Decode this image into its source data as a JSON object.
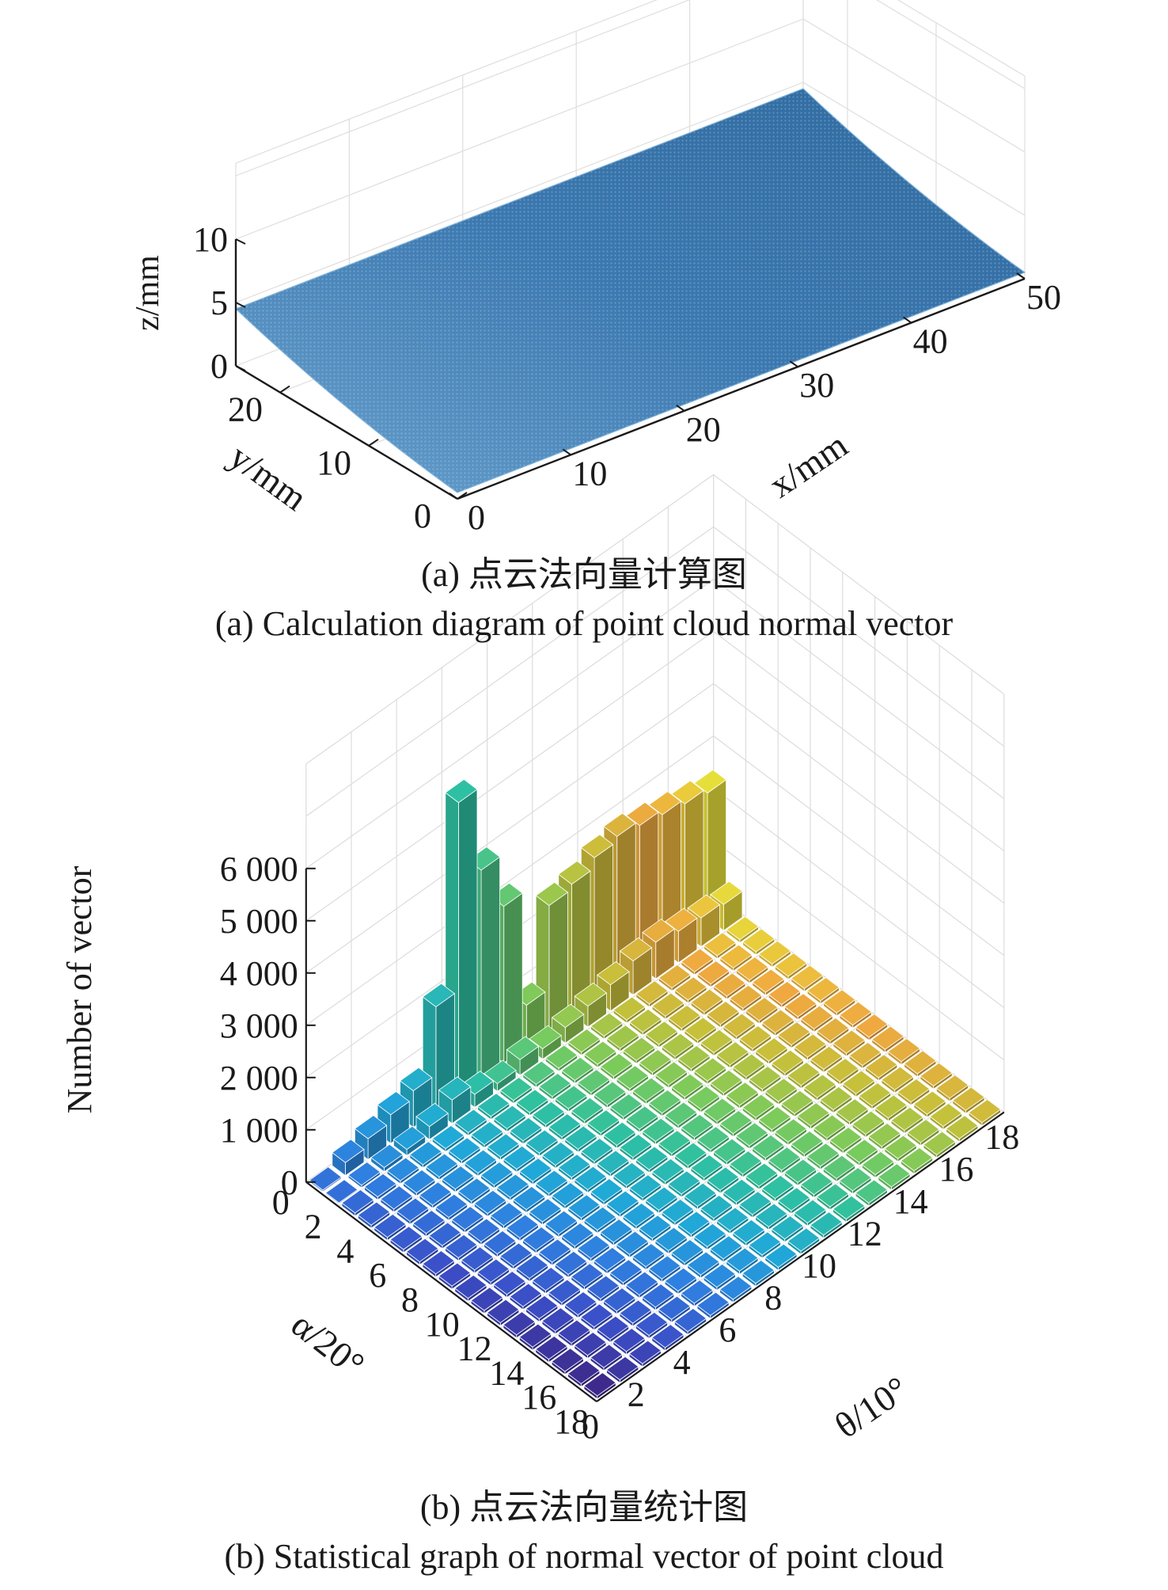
{
  "chart_data": [
    {
      "type": "scatter",
      "subtype": "3d-point-cloud",
      "title": "",
      "xlabel": "x/mm",
      "ylabel": "y/mm",
      "zlabel": "z/mm",
      "xlim": [
        0,
        50
      ],
      "ylim": [
        0,
        25
      ],
      "zlim": [
        0,
        10
      ],
      "xticks": [
        "0",
        "10",
        "20",
        "30",
        "40",
        "50"
      ],
      "yticks": [
        "0",
        "10",
        "20"
      ],
      "zticks": [
        "0",
        "5",
        "10"
      ],
      "surface": {
        "x_range": [
          0,
          50
        ],
        "y_range": [
          0,
          25
        ],
        "z_at_y0": 0.5,
        "z_at_y_mid": 2.0,
        "z_at_y25": 4.5
      },
      "point_color": "#3b78b0",
      "grid": true,
      "caption_cn": "(a) 点云法向量计算图",
      "caption_en": "(a) Calculation diagram of point cloud normal vector"
    },
    {
      "type": "bar3d",
      "title": "",
      "xlabel": "θ/10°",
      "ylabel": "α/20°",
      "zlabel": "Number of vector",
      "zlim": [
        0,
        6000
      ],
      "zticks": [
        "0",
        "1 000",
        "2 000",
        "3 000",
        "4 000",
        "5 000",
        "6 000"
      ],
      "xticks": [
        "0",
        "2",
        "4",
        "6",
        "8",
        "10",
        "12",
        "14",
        "16",
        "18"
      ],
      "yticks": [
        "0",
        "2",
        "4",
        "6",
        "8",
        "10",
        "12",
        "14",
        "16",
        "18"
      ],
      "grid_size": 18,
      "base_value": 60,
      "edge_alpha0": [
        30,
        250,
        400,
        550,
        700,
        2000,
        5600,
        4000,
        3000,
        800,
        2400,
        2500,
        2700,
        2800,
        2700,
        2600,
        2500,
        2400
      ],
      "edge_alpha1": [
        20,
        50,
        80,
        120,
        250,
        450,
        250,
        150,
        300,
        200,
        300,
        400,
        500,
        650,
        700,
        600,
        550,
        500
      ],
      "colormap": [
        "#3d2a8c",
        "#3b4fc8",
        "#2f7fe0",
        "#20a9d8",
        "#2fc1a0",
        "#7acb5c",
        "#c6c13a",
        "#f0a840",
        "#e6df3a"
      ],
      "grid": true,
      "caption_cn": "(b) 点云法向量统计图",
      "caption_en": "(b) Statistical graph of normal vector of point cloud"
    }
  ]
}
